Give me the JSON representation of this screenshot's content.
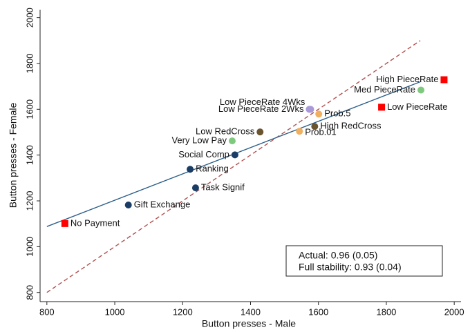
{
  "chart_data": {
    "type": "scatter",
    "x_label": "Button presses - Male",
    "y_label": "Button presses - Female",
    "xlim": [
      780,
      2020
    ],
    "ylim": [
      760,
      2035
    ],
    "xticks": [
      800,
      1000,
      1200,
      1400,
      1600,
      1800,
      2000
    ],
    "yticks": [
      800,
      1000,
      1200,
      1400,
      1600,
      1800,
      2000
    ],
    "points": [
      {
        "label": "No Payment",
        "x": 853,
        "y": 1101,
        "color": "#ff0000",
        "marker": "square"
      },
      {
        "label": "Gift Exchange",
        "x": 1040,
        "y": 1182,
        "color": "#1a3d66",
        "marker": "circle"
      },
      {
        "label": "Task Signif",
        "x": 1238,
        "y": 1257,
        "color": "#1a3d66",
        "marker": "circle"
      },
      {
        "label": "Ranking",
        "x": 1222,
        "y": 1338,
        "color": "#1a3d66",
        "marker": "circle"
      },
      {
        "label": "Social Comp",
        "x": 1354,
        "y": 1401,
        "color": "#1a3d66",
        "marker": "circle"
      },
      {
        "label": "Very Low Pay",
        "x": 1346,
        "y": 1462,
        "color": "#7fc97f",
        "marker": "circle"
      },
      {
        "label": "Low RedCross",
        "x": 1428,
        "y": 1501,
        "color": "#6b5530",
        "marker": "circle"
      },
      {
        "label": "Prob.01",
        "x": 1544,
        "y": 1504,
        "color": "#f0b060",
        "marker": "circle"
      },
      {
        "label": "High RedCross",
        "x": 1589,
        "y": 1525,
        "color": "#6b5530",
        "marker": "circle"
      },
      {
        "label": "Prob.5",
        "x": 1601,
        "y": 1579,
        "color": "#f0b060",
        "marker": "circle"
      },
      {
        "label": "Low PieceRate 4Wks",
        "x": 1577,
        "y": 1600,
        "color": "#a89ad8",
        "marker": "circle"
      },
      {
        "label": "Low PieceRate 2Wks",
        "x": 1573,
        "y": 1600,
        "color": "#a89ad8",
        "marker": "circle"
      },
      {
        "label": "Low PieceRate",
        "x": 1786,
        "y": 1609,
        "color": "#ff0000",
        "marker": "square"
      },
      {
        "label": "Med PieceRate",
        "x": 1902,
        "y": 1684,
        "color": "#7fc97f",
        "marker": "circle"
      },
      {
        "label": "High PieceRate",
        "x": 1970,
        "y": 1729,
        "color": "#ff0000",
        "marker": "square"
      }
    ],
    "fit_line": {
      "x": [
        800,
        1900
      ],
      "y": [
        1088,
        1720
      ],
      "color": "#2d5f8a"
    },
    "reference_line": {
      "x": [
        800,
        1900
      ],
      "y": [
        800,
        1900
      ],
      "color": "#b05050"
    },
    "annotations": [
      "Actual: 0.96 (0.05)",
      "Full stability: 0.93 (0.04)"
    ]
  }
}
